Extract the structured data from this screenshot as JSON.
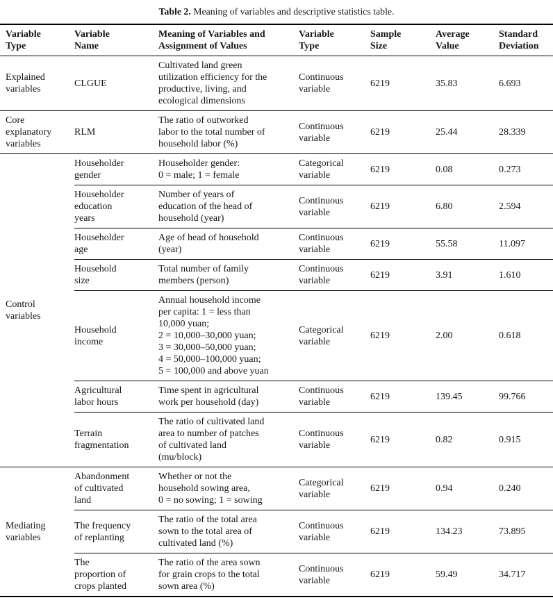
{
  "title": {
    "prefix": "Table 2.",
    "text": " Meaning of variables and descriptive statistics table."
  },
  "table": {
    "columns": [
      "Variable\nType",
      "Variable\nName",
      "Meaning of Variables and\nAssignment of Values",
      "Variable\nType",
      "Sample\nSize",
      "Average\nValue",
      "Standard\nDeviation"
    ],
    "groups": [
      {
        "type": "Explained\nvariables",
        "rows": [
          {
            "name": "CLGUE",
            "meaning": "Cultivated land green\nutilization efficiency for the\nproductive, living, and\necological dimensions",
            "variable_type": "Continuous\nvariable",
            "sample_size": "6219",
            "average": "35.83",
            "std_dev": "6.693"
          }
        ]
      },
      {
        "type": "Core\nexplanatory\nvariables",
        "rows": [
          {
            "name": "RLM",
            "meaning": "The ratio of outworked\nlabor to the total number of\nhousehold labor (%)",
            "variable_type": "Continuous\nvariable",
            "sample_size": "6219",
            "average": "25.44",
            "std_dev": "28.339"
          }
        ]
      },
      {
        "type": "Control\nvariables",
        "rows": [
          {
            "name": "Householder\ngender",
            "meaning": "Householder gender:\n0 = male; 1 = female",
            "variable_type": "Categorical\nvariable",
            "sample_size": "6219",
            "average": "0.08",
            "std_dev": "0.273"
          },
          {
            "name": "Householder\neducation\nyears",
            "meaning": "Number of years of\neducation of the head of\nhousehold (year)",
            "variable_type": "Continuous\nvariable",
            "sample_size": "6219",
            "average": "6.80",
            "std_dev": "2.594"
          },
          {
            "name": "Householder\nage",
            "meaning": "Age of head of household\n(year)",
            "variable_type": "Continuous\nvariable",
            "sample_size": "6219",
            "average": "55.58",
            "std_dev": "11.097"
          },
          {
            "name": "Household\nsize",
            "meaning": "Total number of family\nmembers (person)",
            "variable_type": "Continuous\nvariable",
            "sample_size": "6219",
            "average": "3.91",
            "std_dev": "1.610"
          },
          {
            "name": "Household\nincome",
            "meaning": "Annual household income\nper capita: 1 = less than\n10,000 yuan;\n2 = 10,000–30,000 yuan;\n3 = 30,000–50,000 yuan;\n4 = 50,000–100,000 yuan;\n5 = 100,000 and above yuan",
            "variable_type": "Categorical\nvariable",
            "sample_size": "6219",
            "average": "2.00",
            "std_dev": "0.618"
          },
          {
            "name": "Agricultural\nlabor hours",
            "meaning": "Time spent in agricultural\nwork per household (day)",
            "variable_type": "Continuous\nvariable",
            "sample_size": "6219",
            "average": "139.45",
            "std_dev": "99.766"
          },
          {
            "name": "Terrain\nfragmentation",
            "meaning": "The ratio of cultivated land\narea to number of patches\nof cultivated land\n(mu/block)",
            "variable_type": "Continuous\nvariable",
            "sample_size": "6219",
            "average": "0.82",
            "std_dev": "0.915"
          }
        ]
      },
      {
        "type": "Mediating\nvariables",
        "rows": [
          {
            "name": "Abandonment\nof cultivated\nland",
            "meaning": "Whether or not the\nhousehold sowing area,\n0 = no sowing; 1 = sowing",
            "variable_type": "Categorical\nvariable",
            "sample_size": "6219",
            "average": "0.94",
            "std_dev": "0.240"
          },
          {
            "name": "The frequency\nof replanting",
            "meaning": "The ratio of the total area\nsown to the total area of\ncultivated land (%)",
            "variable_type": "Continuous\nvariable",
            "sample_size": "6219",
            "average": "134.23",
            "std_dev": "73.895"
          },
          {
            "name": "The\nproportion of\ncrops planted",
            "meaning": "The ratio of the area sown\nfor grain crops to the total\nsown area (%)",
            "variable_type": "Continuous\nvariable",
            "sample_size": "6219",
            "average": "59.49",
            "std_dev": "34.717"
          }
        ]
      }
    ]
  }
}
